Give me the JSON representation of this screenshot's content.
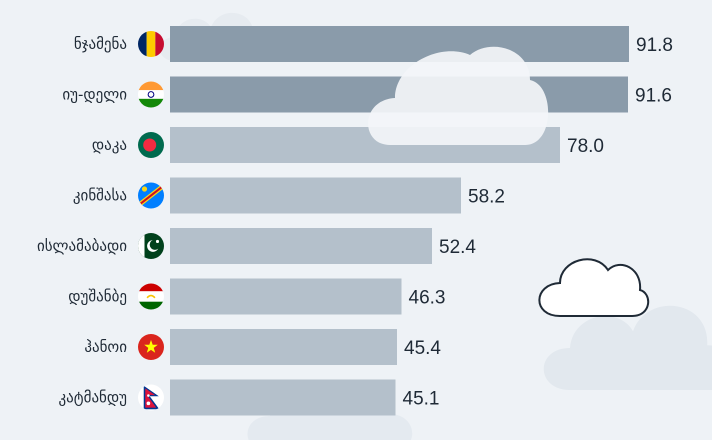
{
  "chart_data": {
    "type": "bar",
    "orientation": "horizontal",
    "categories": [
      "ნჯამენა",
      "იუ-დელი",
      "დაკა",
      "კინშასა",
      "ისლამაბადი",
      "დუშანბე",
      "ჰანოი",
      "კატმანდუ"
    ],
    "values": [
      91.8,
      91.6,
      78.0,
      58.2,
      52.4,
      46.3,
      45.4,
      45.1
    ],
    "value_labels": [
      "91.8",
      "91.6",
      "78.0",
      "58.2",
      "52.4",
      "46.3",
      "45.4",
      "45.1"
    ],
    "flags": [
      "chad-flag-icon",
      "india-flag-icon",
      "bangladesh-flag-icon",
      "dr-congo-flag-icon",
      "pakistan-flag-icon",
      "tajikistan-flag-icon",
      "vietnam-flag-icon",
      "nepal-flag-icon"
    ],
    "xlim": [
      0,
      100
    ],
    "grid": false,
    "title": "",
    "xlabel": "",
    "ylabel": ""
  },
  "colors": {
    "background": "#eef2f6",
    "bar_dark": "#8a9baa",
    "bar_light": "#b4c0cb",
    "text": "#1f2a36",
    "cloud": "#ffffff"
  }
}
